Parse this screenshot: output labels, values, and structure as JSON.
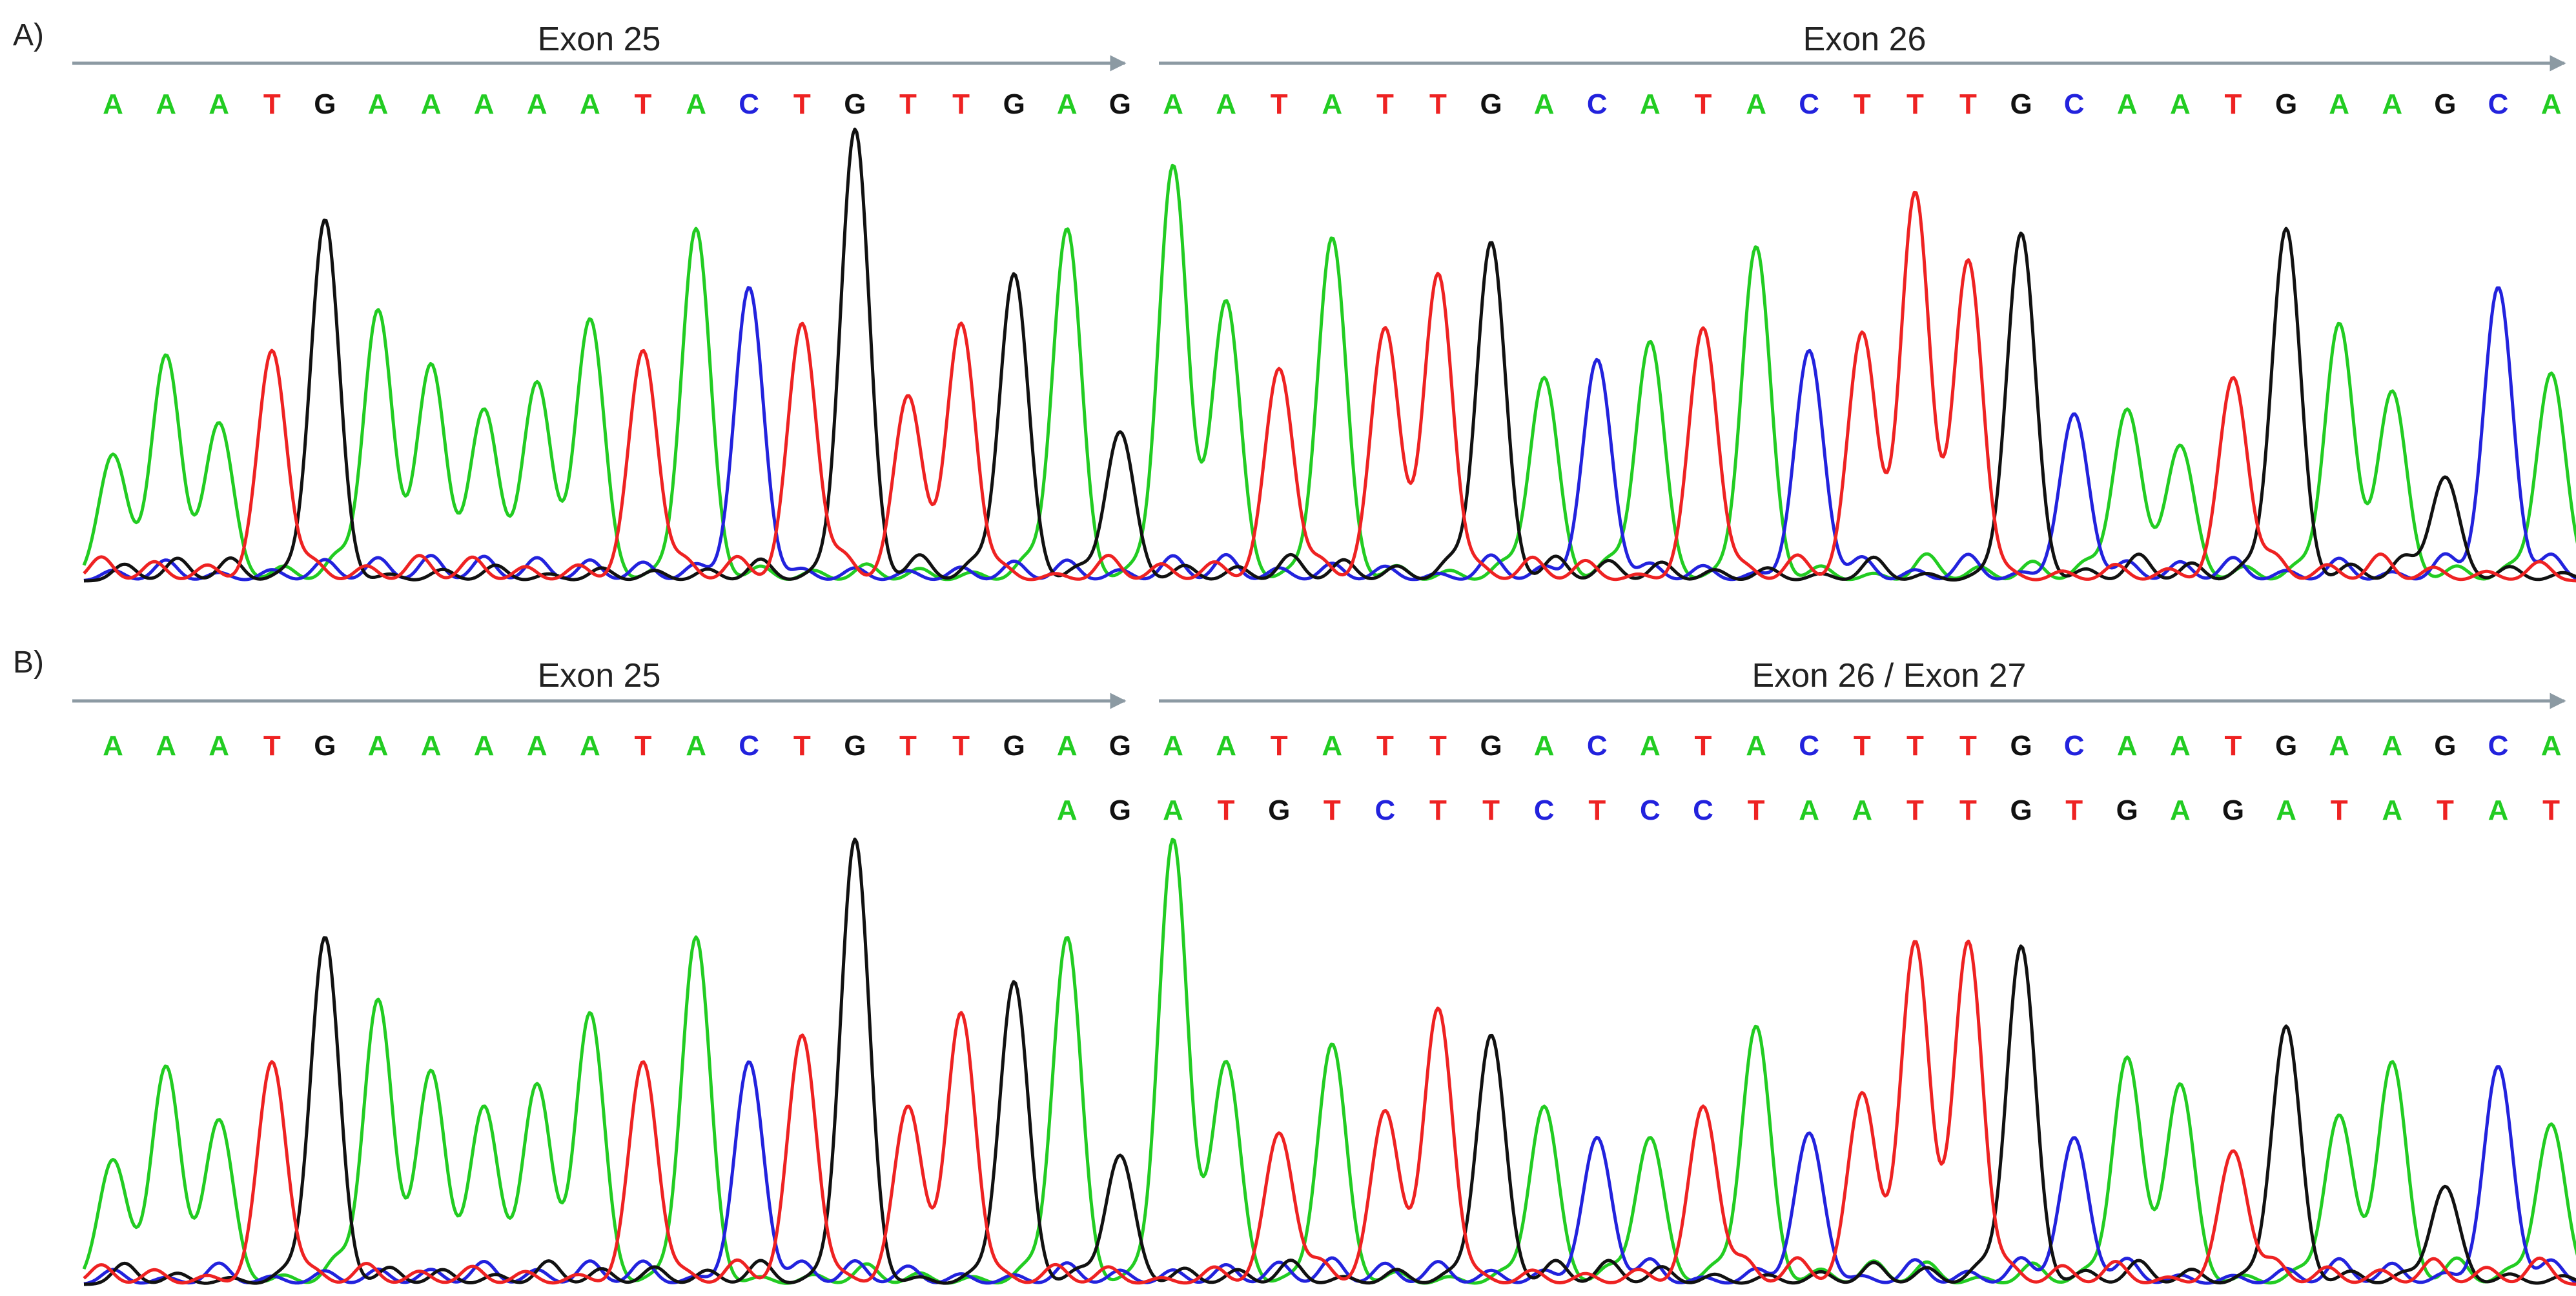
{
  "colors": {
    "A": "#22cc22",
    "C": "#2222dd",
    "G": "#111111",
    "T": "#ee2222",
    "arrow": "#8c9aa3"
  },
  "panels": [
    {
      "label": "A)",
      "exon_labels": [
        "Exon 25",
        "Exon 26"
      ],
      "sequences": [
        "AAATGAAAAATACTGTTGAGAATATTGACATACTTTGCAATGAAGCA"
      ],
      "secondary_sequence": "",
      "peaks": [
        {
          "base": "A",
          "h": 0.28
        },
        {
          "base": "A",
          "h": 0.5
        },
        {
          "base": "A",
          "h": 0.35
        },
        {
          "base": "T",
          "h": 0.51
        },
        {
          "base": "G",
          "h": 0.8
        },
        {
          "base": "A",
          "h": 0.6
        },
        {
          "base": "A",
          "h": 0.48
        },
        {
          "base": "A",
          "h": 0.38
        },
        {
          "base": "A",
          "h": 0.44
        },
        {
          "base": "A",
          "h": 0.58
        },
        {
          "base": "T",
          "h": 0.51
        },
        {
          "base": "A",
          "h": 0.78
        },
        {
          "base": "C",
          "h": 0.65
        },
        {
          "base": "T",
          "h": 0.57
        },
        {
          "base": "G",
          "h": 1.0
        },
        {
          "base": "T",
          "h": 0.41
        },
        {
          "base": "T",
          "h": 0.57
        },
        {
          "base": "G",
          "h": 0.68
        },
        {
          "base": "A",
          "h": 0.78
        },
        {
          "base": "G",
          "h": 0.33
        },
        {
          "base": "A",
          "h": 0.92
        },
        {
          "base": "A",
          "h": 0.62
        },
        {
          "base": "T",
          "h": 0.47
        },
        {
          "base": "A",
          "h": 0.76
        },
        {
          "base": "T",
          "h": 0.56
        },
        {
          "base": "T",
          "h": 0.68
        },
        {
          "base": "G",
          "h": 0.75
        },
        {
          "base": "A",
          "h": 0.45
        },
        {
          "base": "C",
          "h": 0.49
        },
        {
          "base": "A",
          "h": 0.53
        },
        {
          "base": "T",
          "h": 0.56
        },
        {
          "base": "A",
          "h": 0.74
        },
        {
          "base": "C",
          "h": 0.51
        },
        {
          "base": "T",
          "h": 0.55
        },
        {
          "base": "T",
          "h": 0.86
        },
        {
          "base": "T",
          "h": 0.71
        },
        {
          "base": "G",
          "h": 0.77
        },
        {
          "base": "C",
          "h": 0.37
        },
        {
          "base": "A",
          "h": 0.38
        },
        {
          "base": "A",
          "h": 0.3
        },
        {
          "base": "T",
          "h": 0.45
        },
        {
          "base": "G",
          "h": 0.78
        },
        {
          "base": "A",
          "h": 0.57
        },
        {
          "base": "A",
          "h": 0.42
        },
        {
          "base": "G",
          "h": 0.23
        },
        {
          "base": "C",
          "h": 0.65
        },
        {
          "base": "A",
          "h": 0.46
        }
      ]
    },
    {
      "label": "B)",
      "exon_labels": [
        "Exon 25",
        "Exon 26 / Exon 27"
      ],
      "sequences": [
        "AAATGAAAAATACTGTTGAGAATATTGACATACTTTGCAATGAAGCA",
        "AGATGTCTTCTCCTAATTGTGAGATATAT"
      ],
      "peaks": [
        {
          "base": "A",
          "h": 0.28
        },
        {
          "base": "A",
          "h": 0.49
        },
        {
          "base": "A",
          "h": 0.37
        },
        {
          "base": "T",
          "h": 0.5
        },
        {
          "base": "G",
          "h": 0.78
        },
        {
          "base": "A",
          "h": 0.64
        },
        {
          "base": "A",
          "h": 0.48
        },
        {
          "base": "A",
          "h": 0.4
        },
        {
          "base": "A",
          "h": 0.45
        },
        {
          "base": "A",
          "h": 0.61
        },
        {
          "base": "T",
          "h": 0.5
        },
        {
          "base": "A",
          "h": 0.78
        },
        {
          "base": "C",
          "h": 0.5
        },
        {
          "base": "T",
          "h": 0.56
        },
        {
          "base": "G",
          "h": 1.0
        },
        {
          "base": "T",
          "h": 0.4
        },
        {
          "base": "T",
          "h": 0.61
        },
        {
          "base": "G",
          "h": 0.68
        },
        {
          "base": "A",
          "h": 0.78
        },
        {
          "base": "G",
          "h": 0.29
        },
        {
          "base": "A",
          "h": 1.0
        },
        {
          "base": "A",
          "h": 0.5
        },
        {
          "base": "T",
          "h": 0.34
        },
        {
          "base": "A",
          "h": 0.54
        },
        {
          "base": "T",
          "h": 0.39
        },
        {
          "base": "T",
          "h": 0.62
        },
        {
          "base": "G",
          "h": 0.56
        },
        {
          "base": "A",
          "h": 0.4
        },
        {
          "base": "C",
          "h": 0.33
        },
        {
          "base": "A",
          "h": 0.33
        },
        {
          "base": "T",
          "h": 0.4
        },
        {
          "base": "A",
          "h": 0.58
        },
        {
          "base": "C",
          "h": 0.34
        },
        {
          "base": "T",
          "h": 0.43
        },
        {
          "base": "T",
          "h": 0.77
        },
        {
          "base": "T",
          "h": 0.77
        },
        {
          "base": "G",
          "h": 0.76
        },
        {
          "base": "C",
          "h": 0.33
        },
        {
          "base": "A",
          "h": 0.51
        },
        {
          "base": "A",
          "h": 0.45
        },
        {
          "base": "T",
          "h": 0.3
        },
        {
          "base": "G",
          "h": 0.58
        },
        {
          "base": "A",
          "h": 0.38
        },
        {
          "base": "A",
          "h": 0.5
        },
        {
          "base": "G",
          "h": 0.22
        },
        {
          "base": "C",
          "h": 0.49
        },
        {
          "base": "A",
          "h": 0.36
        }
      ]
    }
  ]
}
